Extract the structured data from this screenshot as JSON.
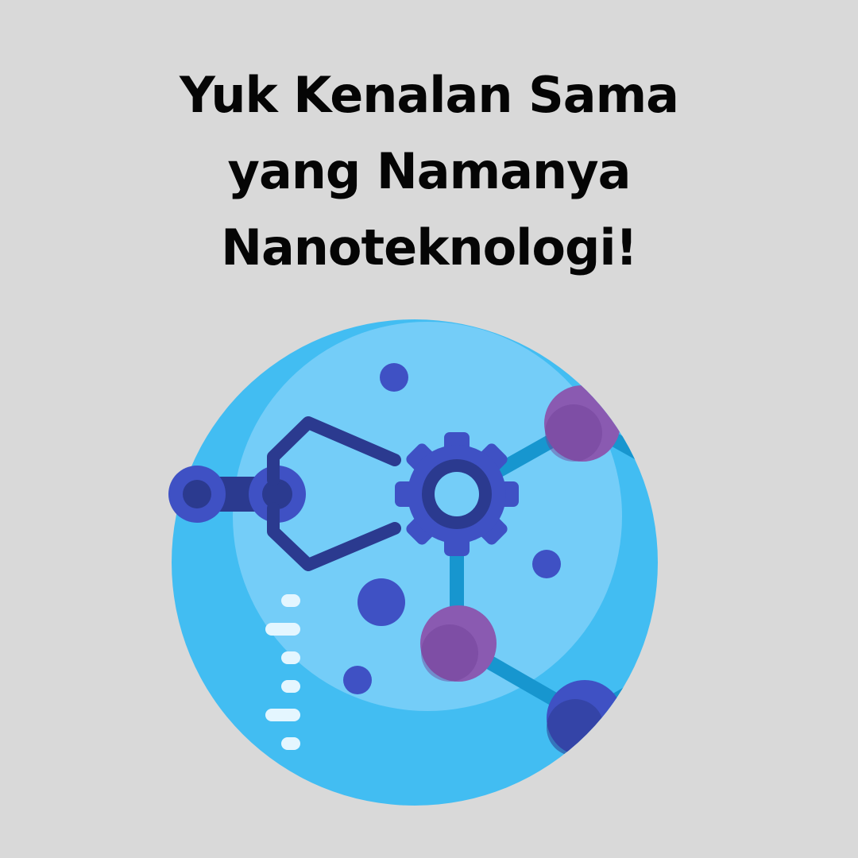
{
  "title": {
    "line1": "Yuk Kenalan Sama",
    "line2": "yang Namanya",
    "line3": "Nanoteknologi!"
  },
  "illustration": {
    "icon": "nanotechnology-icon",
    "colors": {
      "background": "#d9d9d9",
      "outer_circle": "#42bdf2",
      "inner_circle": "#74cdf8",
      "dark_blue": "#2b3a8f",
      "gear_blue": "#3f51c4",
      "bond_blue": "#1796cf",
      "purple": "#8a5ab1",
      "dark_purple": "#6f4097"
    }
  }
}
